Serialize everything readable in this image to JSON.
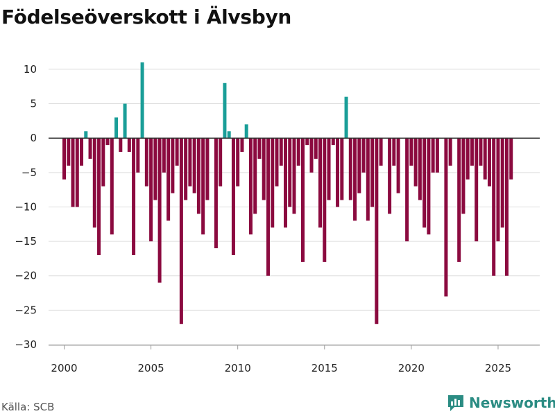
{
  "title": "Födelseöverskott i Älvsbyn",
  "source": "Källa: SCB",
  "brand": "Newsworthy",
  "colors": {
    "positive": "#1a9e98",
    "negative": "#8b0a3f",
    "grid": "#dddddd",
    "zero_line": "#333333",
    "brand": "#2b8c83"
  },
  "chart_data": {
    "type": "bar",
    "title": "Födelseöverskott i Älvsbyn",
    "xlabel": "",
    "ylabel": "",
    "x_start": 2000,
    "x_step": 0.25,
    "x_ticks": [
      2000,
      2005,
      2010,
      2015,
      2020,
      2025
    ],
    "y_ticks": [
      10,
      5,
      0,
      -5,
      -10,
      -15,
      -20,
      -25,
      -30
    ],
    "ylim": [
      -30,
      11
    ],
    "xlim": [
      1999.1,
      2027.4
    ],
    "values": [
      -6,
      -4,
      -10,
      -10,
      -4,
      1,
      -3,
      -13,
      -17,
      -7,
      -1,
      -14,
      3,
      -2,
      5,
      -2,
      -17,
      -5,
      11,
      -7,
      -15,
      -9,
      -21,
      -5,
      -12,
      -8,
      -4,
      -27,
      -9,
      -7,
      -8,
      -11,
      -14,
      -9,
      0,
      -16,
      -7,
      8,
      1,
      -17,
      -7,
      -2,
      2,
      -14,
      -11,
      -3,
      -9,
      -20,
      -13,
      -7,
      -4,
      -13,
      -10,
      -11,
      -4,
      -18,
      -1,
      -5,
      -3,
      -13,
      -18,
      -9,
      -1,
      -10,
      -9,
      6,
      -9,
      -12,
      -8,
      -5,
      -12,
      -10,
      -27,
      -4,
      0,
      -11,
      -4,
      -8,
      0,
      -15,
      -4,
      -7,
      -9,
      -13,
      -14,
      -5,
      -5,
      0,
      -23,
      -4,
      0,
      -18,
      -11,
      -6,
      -4,
      -15,
      -4,
      -6,
      -7,
      -20,
      -15,
      -13,
      -20,
      -6
    ]
  }
}
